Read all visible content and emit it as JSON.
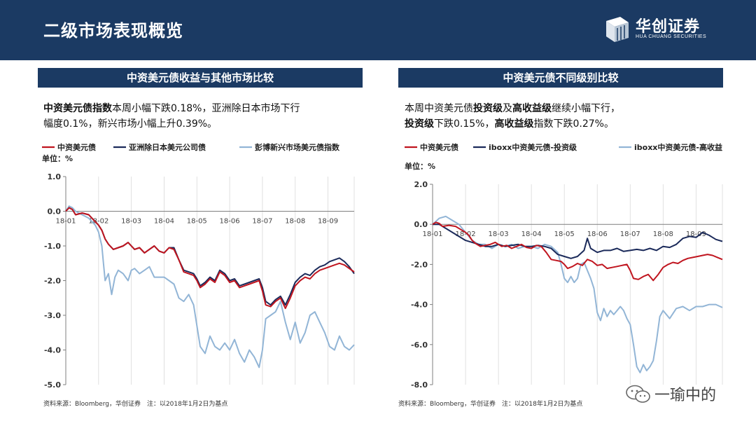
{
  "header": {
    "title": "二级市场表现概览"
  },
  "logo": {
    "name": "华创证券",
    "sub": "HUA CHUANG SECURITIES"
  },
  "left_panel": {
    "title": "中资美元债收益与其他市场比较",
    "text_bold": "中资美元债指数",
    "text_rest1": "本周小幅下跌0.18%，亚洲除日本市场下行",
    "text_line2": "幅度0.1%，新兴市场小幅上升0.39%。",
    "source": "资料来源：Bloomberg，华创证券　注：以2018年1月2日为基点"
  },
  "right_panel": {
    "title": "中资美元债不同级别比较",
    "line1_a": "本周中资美元债",
    "line1_b": "投资级",
    "line1_c": "及",
    "line1_d": "高收益级",
    "line1_e": "继续小幅下行，",
    "line2_a": "投资级",
    "line2_b": "下跌0.15%，",
    "line2_c": "高收益级",
    "line2_d": "指数下跌0.27%。",
    "source": "资料来源：Bloomberg，华创证券　注：以2018年1月2日为基点"
  },
  "watermark": {
    "text": "一瑜中的",
    "icon": "wechat-icon"
  },
  "colors": {
    "header": "#1b3a63",
    "red": "#c0151f",
    "navy": "#1b2a5a",
    "light_blue": "#92b5d6"
  },
  "chart_data": [
    {
      "type": "line",
      "unit_label": "单位：%",
      "ylim": [
        -5.0,
        1.0
      ],
      "y_ticks": [
        "1.0",
        "0.0",
        "-1.0",
        "-2.0",
        "-3.0",
        "-4.0",
        "-5.0"
      ],
      "y_tick_values": [
        1,
        0,
        -1,
        -2,
        -3,
        -4,
        -5
      ],
      "x_ticks": [
        "18-01",
        "18-02",
        "18-03",
        "18-04",
        "18-05",
        "18-06",
        "18-07",
        "18-08",
        "18-09"
      ],
      "grid": "vertical",
      "legend": "top",
      "x_max": 8.8,
      "series": [
        {
          "name": "中资美元债",
          "color": "#c0151f",
          "x": [
            0,
            0.1,
            0.2,
            0.3,
            0.5,
            0.7,
            0.9,
            1.0,
            1.1,
            1.2,
            1.3,
            1.45,
            1.6,
            1.75,
            1.9,
            2.0,
            2.1,
            2.25,
            2.4,
            2.55,
            2.7,
            2.85,
            3.0,
            3.15,
            3.3,
            3.45,
            3.6,
            3.75,
            3.9,
            4.0,
            4.1,
            4.25,
            4.4,
            4.55,
            4.7,
            4.85,
            5.0,
            5.15,
            5.3,
            5.45,
            5.6,
            5.75,
            5.9,
            6.0,
            6.1,
            6.25,
            6.4,
            6.55,
            6.7,
            6.85,
            7.0,
            7.15,
            7.3,
            7.45,
            7.6,
            7.75,
            7.9,
            8.05,
            8.2,
            8.35,
            8.5,
            8.65,
            8.8
          ],
          "y": [
            0.0,
            0.1,
            0.05,
            -0.1,
            -0.05,
            -0.1,
            -0.3,
            -0.4,
            -0.55,
            -0.8,
            -0.95,
            -1.1,
            -1.05,
            -1.0,
            -0.9,
            -1.0,
            -1.1,
            -1.05,
            -1.2,
            -1.1,
            -1.0,
            -1.15,
            -1.2,
            -1.05,
            -1.1,
            -1.4,
            -1.75,
            -1.8,
            -1.85,
            -2.0,
            -2.2,
            -2.1,
            -1.95,
            -2.05,
            -1.75,
            -1.85,
            -2.05,
            -2.0,
            -2.2,
            -2.15,
            -2.1,
            -2.05,
            -2.0,
            -2.3,
            -2.7,
            -2.75,
            -2.6,
            -2.5,
            -2.8,
            -2.5,
            -2.15,
            -2.0,
            -1.9,
            -1.95,
            -1.8,
            -1.7,
            -1.65,
            -1.6,
            -1.55,
            -1.5,
            -1.55,
            -1.65,
            -1.75
          ]
        },
        {
          "name": "亚洲除日本美元公司债",
          "color": "#1b2a5a",
          "x": [
            0,
            0.1,
            0.2,
            0.3,
            0.5,
            0.7,
            0.9,
            1.0,
            1.1,
            1.2,
            1.3,
            1.45,
            1.6,
            1.75,
            1.9,
            2.0,
            2.1,
            2.25,
            2.4,
            2.55,
            2.7,
            2.85,
            3.0,
            3.15,
            3.3,
            3.45,
            3.6,
            3.75,
            3.9,
            4.0,
            4.1,
            4.25,
            4.4,
            4.55,
            4.7,
            4.85,
            5.0,
            5.15,
            5.3,
            5.45,
            5.6,
            5.75,
            5.9,
            6.0,
            6.1,
            6.25,
            6.4,
            6.55,
            6.7,
            6.85,
            7.0,
            7.15,
            7.3,
            7.45,
            7.6,
            7.75,
            7.9,
            8.05,
            8.2,
            8.35,
            8.5,
            8.65,
            8.8
          ],
          "y": [
            0.0,
            0.1,
            0.05,
            -0.1,
            -0.05,
            -0.1,
            -0.3,
            -0.4,
            -0.55,
            -0.8,
            -0.95,
            -1.1,
            -1.05,
            -1.0,
            -0.9,
            -1.0,
            -1.1,
            -1.05,
            -1.2,
            -1.1,
            -1.0,
            -1.15,
            -1.2,
            -1.05,
            -1.05,
            -1.4,
            -1.7,
            -1.75,
            -1.8,
            -1.95,
            -2.15,
            -2.05,
            -1.9,
            -2.0,
            -1.7,
            -1.8,
            -2.0,
            -1.95,
            -2.15,
            -2.1,
            -2.05,
            -2.0,
            -1.95,
            -2.2,
            -2.6,
            -2.7,
            -2.55,
            -2.45,
            -2.7,
            -2.4,
            -2.05,
            -1.9,
            -1.8,
            -1.85,
            -1.7,
            -1.6,
            -1.55,
            -1.45,
            -1.4,
            -1.35,
            -1.45,
            -1.6,
            -1.8
          ]
        },
        {
          "name": "彭博新兴市场美元债指数",
          "color": "#92b5d6",
          "x": [
            0,
            0.1,
            0.2,
            0.3,
            0.5,
            0.7,
            0.9,
            1.0,
            1.1,
            1.15,
            1.2,
            1.3,
            1.4,
            1.5,
            1.6,
            1.75,
            1.9,
            2.0,
            2.1,
            2.25,
            2.4,
            2.55,
            2.7,
            2.85,
            3.0,
            3.15,
            3.3,
            3.45,
            3.6,
            3.75,
            3.9,
            4.0,
            4.1,
            4.25,
            4.4,
            4.55,
            4.7,
            4.85,
            5.0,
            5.15,
            5.3,
            5.45,
            5.6,
            5.75,
            5.9,
            6.0,
            6.1,
            6.25,
            6.4,
            6.55,
            6.7,
            6.85,
            7.0,
            7.15,
            7.3,
            7.45,
            7.6,
            7.75,
            7.9,
            8.05,
            8.2,
            8.35,
            8.5,
            8.65,
            8.8
          ],
          "y": [
            0.0,
            0.15,
            0.1,
            0.0,
            -0.1,
            -0.2,
            -0.4,
            -0.6,
            -1.0,
            -1.5,
            -2.0,
            -1.8,
            -2.4,
            -1.9,
            -1.7,
            -1.8,
            -2.0,
            -1.7,
            -1.65,
            -1.8,
            -1.7,
            -1.6,
            -1.9,
            -1.9,
            -1.9,
            -2.0,
            -2.1,
            -2.5,
            -2.6,
            -2.4,
            -2.7,
            -3.3,
            -3.9,
            -4.1,
            -3.6,
            -3.9,
            -4.0,
            -3.8,
            -4.0,
            -3.7,
            -4.1,
            -4.35,
            -4.0,
            -4.2,
            -4.5,
            -4.0,
            -3.1,
            -3.0,
            -2.9,
            -2.6,
            -3.2,
            -3.7,
            -3.2,
            -3.8,
            -3.5,
            -3.0,
            -2.9,
            -3.2,
            -3.5,
            -3.9,
            -4.0,
            -3.6,
            -3.9,
            -4.0,
            -3.85
          ]
        }
      ]
    },
    {
      "type": "line",
      "unit_label": "单位：%",
      "ylim": [
        -8.0,
        2.0
      ],
      "y_ticks": [
        "2.0",
        "0.0",
        "-2.0",
        "-4.0",
        "-6.0",
        "-8.0"
      ],
      "y_tick_values": [
        2,
        0,
        -2,
        -4,
        -6,
        -8
      ],
      "x_ticks": [
        "18-01",
        "18-02",
        "18-03",
        "18-04",
        "18-05",
        "18-06",
        "18-07",
        "18-08",
        "18-09"
      ],
      "grid": "vertical",
      "legend": "top",
      "x_max": 8.8,
      "series": [
        {
          "name": "中资美元债",
          "color": "#c0151f",
          "x": [
            0,
            0.1,
            0.2,
            0.3,
            0.5,
            0.7,
            0.9,
            1.0,
            1.1,
            1.2,
            1.3,
            1.45,
            1.6,
            1.75,
            1.9,
            2.0,
            2.1,
            2.25,
            2.4,
            2.55,
            2.7,
            2.85,
            3.0,
            3.15,
            3.3,
            3.45,
            3.6,
            3.75,
            3.9,
            4.0,
            4.1,
            4.25,
            4.4,
            4.55,
            4.7,
            4.85,
            5.0,
            5.15,
            5.3,
            5.45,
            5.6,
            5.75,
            5.9,
            6.0,
            6.1,
            6.25,
            6.4,
            6.55,
            6.7,
            6.85,
            7.0,
            7.15,
            7.3,
            7.45,
            7.6,
            7.75,
            7.9,
            8.05,
            8.2,
            8.35,
            8.5,
            8.65,
            8.8
          ],
          "y": [
            0.0,
            0.1,
            0.05,
            -0.1,
            -0.05,
            -0.1,
            -0.3,
            -0.4,
            -0.55,
            -0.8,
            -0.95,
            -1.1,
            -1.05,
            -1.0,
            -0.9,
            -1.0,
            -1.1,
            -1.05,
            -1.2,
            -1.1,
            -1.0,
            -1.15,
            -1.2,
            -1.05,
            -1.1,
            -1.4,
            -1.75,
            -1.8,
            -1.85,
            -2.0,
            -2.2,
            -2.1,
            -1.95,
            -2.05,
            -1.75,
            -1.85,
            -2.05,
            -2.0,
            -2.2,
            -2.15,
            -2.1,
            -2.05,
            -2.0,
            -2.3,
            -2.7,
            -2.75,
            -2.6,
            -2.5,
            -2.8,
            -2.5,
            -2.15,
            -2.0,
            -1.9,
            -1.95,
            -1.8,
            -1.7,
            -1.65,
            -1.6,
            -1.55,
            -1.5,
            -1.55,
            -1.65,
            -1.75
          ]
        },
        {
          "name": "iboxx中资美元债-投资级",
          "color": "#1b2a5a",
          "x": [
            0,
            0.2,
            0.4,
            0.6,
            0.8,
            1.0,
            1.2,
            1.4,
            1.6,
            1.8,
            2.0,
            2.2,
            2.4,
            2.6,
            2.8,
            3.0,
            3.2,
            3.4,
            3.6,
            3.8,
            4.0,
            4.2,
            4.4,
            4.6,
            4.7,
            4.8,
            5.0,
            5.2,
            5.4,
            5.6,
            5.8,
            6.0,
            6.2,
            6.4,
            6.6,
            6.8,
            7.0,
            7.2,
            7.4,
            7.6,
            7.8,
            8.0,
            8.2,
            8.4,
            8.6,
            8.8
          ],
          "y": [
            0.0,
            0.0,
            -0.2,
            -0.4,
            -0.6,
            -0.8,
            -0.9,
            -1.0,
            -1.1,
            -1.1,
            -1.0,
            -1.1,
            -1.05,
            -1.0,
            -1.1,
            -1.1,
            -1.05,
            -1.1,
            -1.2,
            -1.5,
            -1.6,
            -1.7,
            -1.6,
            -1.3,
            -0.7,
            -1.2,
            -1.4,
            -1.3,
            -1.3,
            -1.2,
            -1.35,
            -1.3,
            -1.25,
            -1.3,
            -1.2,
            -1.3,
            -1.1,
            -1.15,
            -1.0,
            -0.7,
            -0.6,
            -0.65,
            -0.4,
            -0.55,
            -0.75,
            -0.85
          ]
        },
        {
          "name": "iboxx中资美元债-高收益",
          "color": "#92b5d6",
          "x": [
            0,
            0.2,
            0.4,
            0.6,
            0.8,
            1.0,
            1.2,
            1.4,
            1.6,
            1.8,
            2.0,
            2.2,
            2.4,
            2.6,
            2.8,
            3.0,
            3.2,
            3.4,
            3.6,
            3.8,
            3.9,
            4.0,
            4.1,
            4.2,
            4.3,
            4.4,
            4.5,
            4.6,
            4.7,
            4.8,
            4.9,
            5.0,
            5.1,
            5.2,
            5.3,
            5.4,
            5.5,
            5.6,
            5.7,
            5.8,
            5.9,
            6.0,
            6.1,
            6.2,
            6.3,
            6.4,
            6.5,
            6.6,
            6.7,
            6.8,
            6.9,
            7.0,
            7.2,
            7.4,
            7.6,
            7.8,
            8.0,
            8.2,
            8.4,
            8.6,
            8.8
          ],
          "y": [
            0.0,
            0.3,
            0.4,
            0.2,
            0.0,
            -0.4,
            -0.8,
            -1.0,
            -1.0,
            -1.2,
            -1.0,
            -1.1,
            -1.0,
            -1.2,
            -1.1,
            -1.1,
            -1.2,
            -1.0,
            -1.1,
            -1.4,
            -2.0,
            -2.7,
            -2.9,
            -2.6,
            -2.9,
            -2.7,
            -2.0,
            -1.9,
            -2.3,
            -2.7,
            -3.2,
            -4.4,
            -4.8,
            -4.2,
            -4.6,
            -4.3,
            -4.5,
            -4.3,
            -4.1,
            -4.3,
            -4.7,
            -5.0,
            -6.0,
            -7.1,
            -7.4,
            -7.0,
            -7.3,
            -7.1,
            -6.8,
            -5.8,
            -4.6,
            -4.3,
            -4.7,
            -4.2,
            -4.1,
            -4.3,
            -4.1,
            -4.1,
            -4.0,
            -4.0,
            -4.15
          ]
        }
      ]
    }
  ]
}
